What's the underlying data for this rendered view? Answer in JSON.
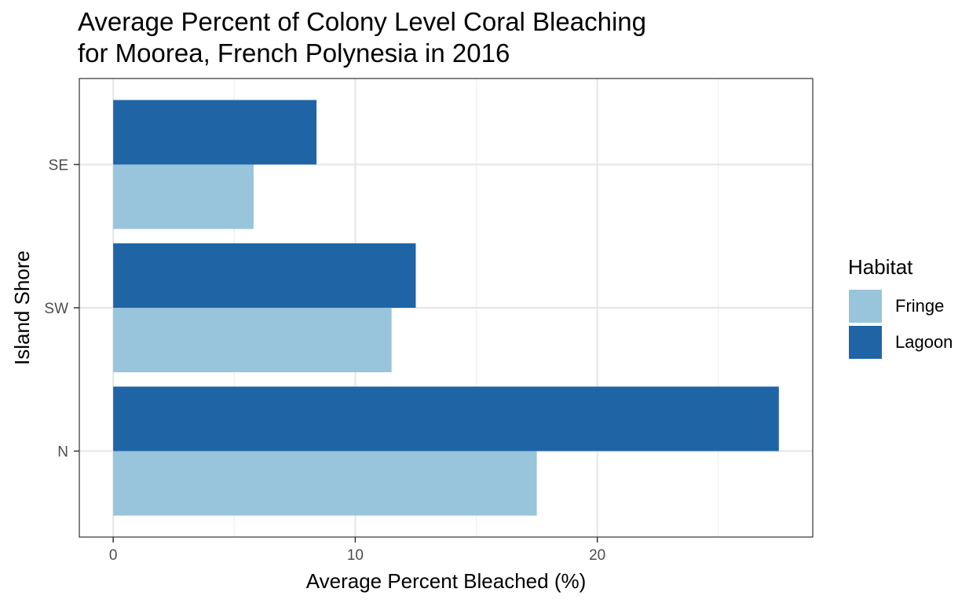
{
  "chart_data": {
    "type": "bar",
    "orientation": "horizontal",
    "title_lines": [
      "Average Percent of Colony Level Coral Bleaching",
      "for Moorea, French Polynesia in 2016"
    ],
    "xlabel": "Average Percent Bleached (%)",
    "ylabel": "Island Shore",
    "categories": [
      "N",
      "SW",
      "SE"
    ],
    "series": [
      {
        "name": "Lagoon",
        "color": "#1f65a6",
        "values": [
          27.5,
          12.5,
          8.4
        ]
      },
      {
        "name": "Fringe",
        "color": "#98c4dc",
        "values": [
          17.5,
          11.5,
          5.8
        ]
      }
    ],
    "xlim": [
      -1.4,
      28.9
    ],
    "xticks": [
      0,
      10,
      20
    ],
    "grid": true,
    "legend": {
      "title": "Habitat",
      "position": "right",
      "items": [
        {
          "name": "Fringe",
          "color": "#98c4dc"
        },
        {
          "name": "Lagoon",
          "color": "#1f65a6"
        }
      ]
    }
  }
}
